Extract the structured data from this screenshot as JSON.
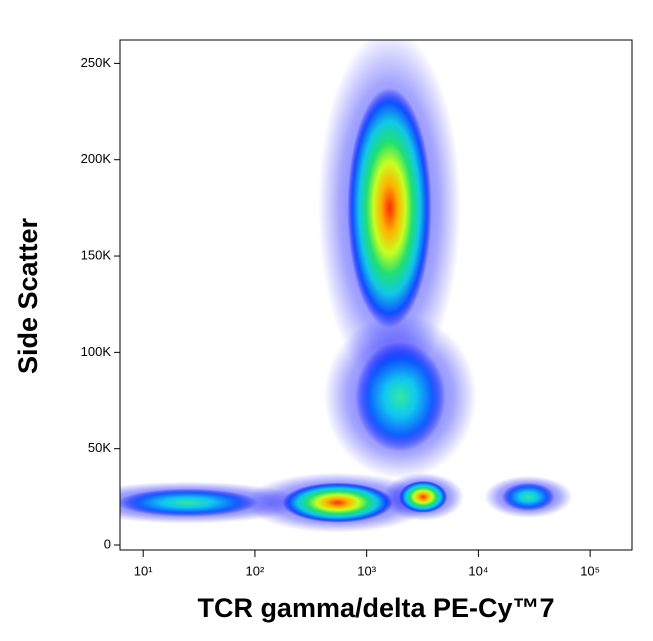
{
  "chart_data": {
    "type": "density",
    "x_label": "TCR gamma/delta PE-Cy™7",
    "y_label": "Side Scatter",
    "x_log": true,
    "x": [
      25,
      550,
      3200,
      28000,
      2000,
      1600
    ],
    "values": [
      22000,
      22000,
      25000,
      25000,
      77000,
      175000
    ],
    "xlim": [
      6.2,
      237000
    ],
    "ylim": [
      -2600,
      262144
    ],
    "xticks": [
      {
        "value": 10,
        "label": "10¹"
      },
      {
        "value": 100,
        "label": "10²"
      },
      {
        "value": 1000,
        "label": "10³"
      },
      {
        "value": 10000,
        "label": "10⁴"
      },
      {
        "value": 100000,
        "label": "10⁵"
      }
    ],
    "yticks": [
      0,
      {
        "value": 50000,
        "label": "50K"
      },
      {
        "value": 100000,
        "label": "100K"
      },
      {
        "value": 150000,
        "label": "150K"
      },
      {
        "value": 200000,
        "label": "200K"
      },
      {
        "value": 250000,
        "label": "250K"
      }
    ]
  }
}
